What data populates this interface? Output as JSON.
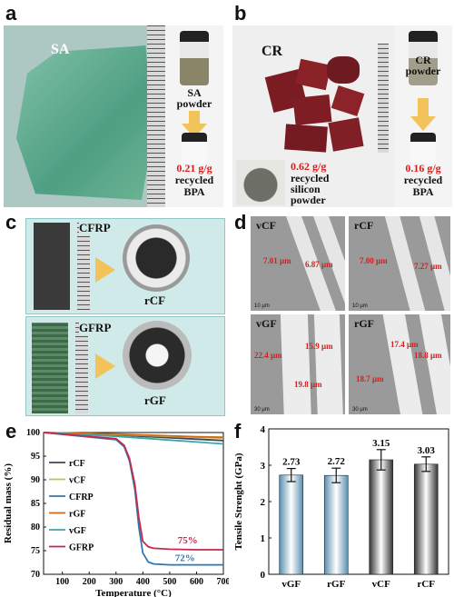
{
  "panels": {
    "a": {
      "label": "a",
      "sample": "SA",
      "vial_label": "SA\npowder",
      "yield": "0.21 g/g",
      "product": "recycled\nBPA"
    },
    "b": {
      "label": "b",
      "sample": "CR",
      "vial_label": "CR\npowder",
      "yield_silicon": "0.62 g/g",
      "silicon_product": "recycled\nsilicon\npowder",
      "yield_bpa": "0.16 g/g",
      "product": "recycled\nBPA"
    },
    "c": {
      "label": "c",
      "top_sample": "CFRP",
      "top_product": "rCF",
      "bottom_sample": "GFRP",
      "bottom_product": "rGF"
    },
    "d": {
      "label": "d",
      "tiles": [
        {
          "name": "vCF",
          "measurements": [
            "7.01 μm",
            "6.87 μm"
          ],
          "scale": "10 μm"
        },
        {
          "name": "rCF",
          "measurements": [
            "7.00 μm",
            "7.27 μm"
          ],
          "scale": "10 μm"
        },
        {
          "name": "vGF",
          "measurements": [
            "22.4 μm",
            "15.9 μm",
            "19.8 μm"
          ],
          "scale": "30 μm"
        },
        {
          "name": "rGF",
          "measurements": [
            "17.4 μm",
            "18.7 μm",
            "18.8 μm"
          ],
          "scale": "30 μm"
        }
      ]
    },
    "e": {
      "label": "e"
    },
    "f": {
      "label": "f"
    }
  },
  "chart_data": [
    {
      "type": "line",
      "panel": "e",
      "xlabel": "Temperature (°C)",
      "ylabel": "Residual mass (%)",
      "xlim": [
        30,
        700
      ],
      "ylim": [
        70,
        100
      ],
      "xticks": [
        100,
        200,
        300,
        400,
        500,
        600,
        700
      ],
      "yticks": [
        70,
        75,
        80,
        85,
        90,
        95,
        100
      ],
      "legend_position": "left",
      "annotations": [
        {
          "text": "75%",
          "color": "#c8284a"
        },
        {
          "text": "72%",
          "color": "#2e78b4"
        }
      ],
      "series": [
        {
          "name": "rCF",
          "color": "#3a4a5a",
          "x": [
            30,
            100,
            200,
            300,
            400,
            500,
            600,
            700
          ],
          "y": [
            100,
            99.9,
            99.7,
            99.5,
            99.2,
            98.9,
            98.6,
            98.3
          ]
        },
        {
          "name": "vCF",
          "color": "#c8b860",
          "x": [
            30,
            100,
            200,
            300,
            400,
            500,
            600,
            700
          ],
          "y": [
            100,
            99.9,
            99.8,
            99.6,
            99.4,
            99.2,
            99.0,
            98.8
          ]
        },
        {
          "name": "CFRP",
          "color": "#2e78b4",
          "x": [
            30,
            300,
            330,
            350,
            370,
            385,
            400,
            420,
            440,
            500,
            600,
            700
          ],
          "y": [
            100,
            98.5,
            97,
            94,
            88,
            80,
            74.5,
            72.6,
            72.2,
            72.0,
            72.0,
            72.0
          ]
        },
        {
          "name": "rGF",
          "color": "#d06a1a",
          "x": [
            30,
            100,
            200,
            300,
            400,
            500,
            600,
            700
          ],
          "y": [
            100,
            99.9,
            99.8,
            99.7,
            99.5,
            99.3,
            99.1,
            99.0
          ]
        },
        {
          "name": "vGF",
          "color": "#3ea5a5",
          "x": [
            30,
            100,
            200,
            300,
            400,
            500,
            600,
            700
          ],
          "y": [
            100,
            99.8,
            99.5,
            99.2,
            98.8,
            98.4,
            98.0,
            97.6
          ]
        },
        {
          "name": "GFRP",
          "color": "#c8284a",
          "x": [
            30,
            300,
            330,
            350,
            370,
            385,
            400,
            420,
            440,
            500,
            600,
            700
          ],
          "y": [
            100,
            98.7,
            97.3,
            94.5,
            89,
            82,
            77,
            75.8,
            75.5,
            75.3,
            75.2,
            75.2
          ]
        }
      ]
    },
    {
      "type": "bar",
      "panel": "f",
      "categories": [
        "vGF",
        "rGF",
        "vCF",
        "rCF"
      ],
      "values": [
        2.73,
        2.72,
        3.15,
        3.03
      ],
      "errors": [
        0.18,
        0.2,
        0.28,
        0.2
      ],
      "value_labels": [
        "2.73",
        "2.72",
        "3.15",
        "3.03"
      ],
      "ylabel": "Tensile Strenght (GPa)",
      "ylim": [
        0,
        4
      ],
      "yticks": [
        0,
        1,
        2,
        3,
        4
      ],
      "colors": [
        "#5b8fb0",
        "#5b8fb0",
        "#333333",
        "#333333"
      ]
    }
  ]
}
